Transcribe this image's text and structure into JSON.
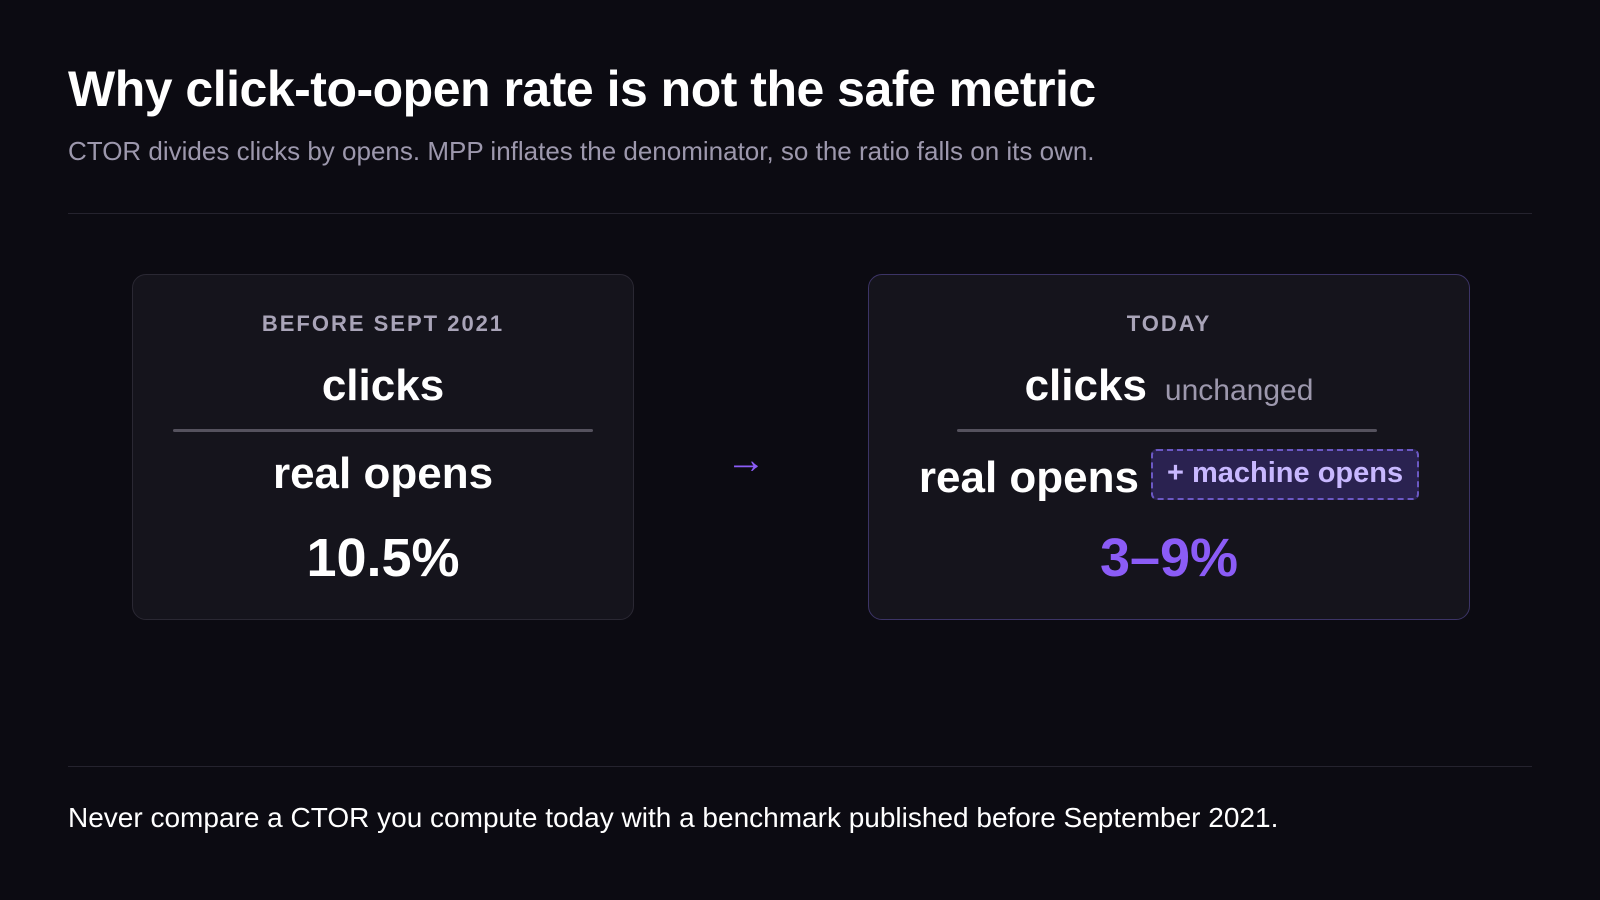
{
  "header": {
    "title": "Why click-to-open rate is not the safe metric",
    "subtitle": "CTOR divides clicks by opens. MPP inflates the denominator, so the ratio falls on its own."
  },
  "before_card": {
    "label": "BEFORE SEPT 2021",
    "numerator": "clicks",
    "denominator": "real opens",
    "rate": "10.5%"
  },
  "arrow": "→",
  "today_card": {
    "label": "TODAY",
    "numerator": "clicks",
    "numerator_note": "unchanged",
    "denominator": "real opens",
    "denominator_addition": "+ machine opens",
    "rate": "3–9%"
  },
  "footer": {
    "note": "Never compare a CTOR you compute today with a benchmark published before September 2021."
  },
  "colors": {
    "background": "#0c0b12",
    "accent_purple": "#8b5cf6",
    "card_background": "#15141c",
    "muted_text": "#9d98ad"
  }
}
